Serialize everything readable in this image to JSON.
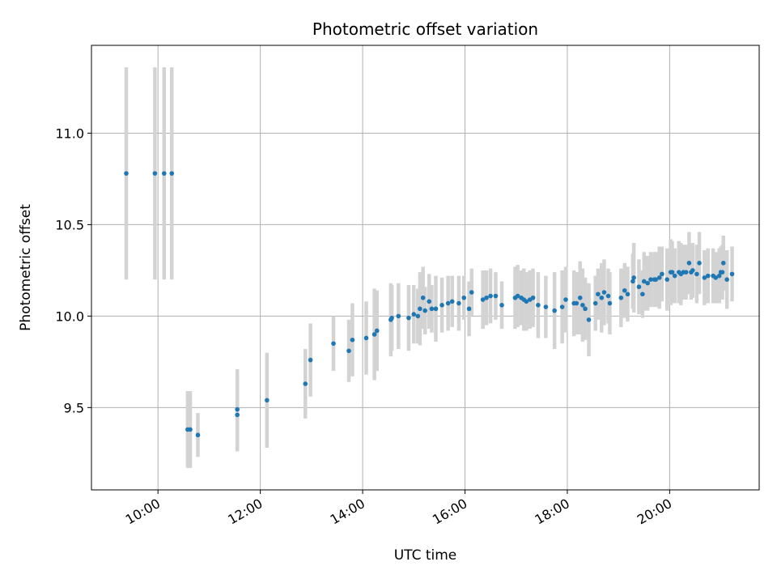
{
  "chart_data": {
    "type": "scatter",
    "title": "Photometric offset variation",
    "xlabel": "UTC time",
    "ylabel": "Photometric offset",
    "xlim": [
      8.7,
      21.75
    ],
    "ylim": [
      9.05,
      11.48
    ],
    "grid": true,
    "x_ticks": [
      {
        "value": 10,
        "label": "10:00"
      },
      {
        "value": 12,
        "label": "12:00"
      },
      {
        "value": 14,
        "label": "14:00"
      },
      {
        "value": 16,
        "label": "16:00"
      },
      {
        "value": 18,
        "label": "18:00"
      },
      {
        "value": 20,
        "label": "20:00"
      }
    ],
    "y_ticks": [
      {
        "value": 9.5,
        "label": "9.5"
      },
      {
        "value": 10.0,
        "label": "10.0"
      },
      {
        "value": 10.5,
        "label": "10.5"
      },
      {
        "value": 11.0,
        "label": "11.0"
      }
    ],
    "colors": {
      "marker": "#1f77b4",
      "errorbar": "#d3d3d3",
      "grid": "#b0b0b0"
    },
    "series": [
      {
        "name": "offset",
        "x": [
          9.38,
          9.94,
          10.12,
          10.27,
          10.58,
          10.63,
          10.78,
          11.55,
          11.55,
          12.13,
          12.88,
          12.98,
          13.43,
          13.73,
          13.8,
          14.07,
          14.23,
          14.28,
          14.55,
          14.57,
          14.7,
          14.9,
          15.0,
          15.08,
          15.12,
          15.18,
          15.22,
          15.3,
          15.35,
          15.43,
          15.55,
          15.67,
          15.75,
          15.88,
          15.98,
          16.08,
          16.13,
          16.35,
          16.42,
          16.5,
          16.6,
          16.72,
          16.98,
          17.03,
          17.1,
          17.15,
          17.2,
          17.27,
          17.33,
          17.43,
          17.58,
          17.75,
          17.9,
          17.97,
          18.13,
          18.18,
          18.25,
          18.3,
          18.35,
          18.42,
          18.55,
          18.6,
          18.67,
          18.72,
          18.8,
          18.83,
          19.05,
          19.12,
          19.18,
          19.28,
          19.3,
          19.4,
          19.47,
          19.5,
          19.57,
          19.63,
          19.7,
          19.73,
          19.8,
          19.85,
          19.95,
          20.02,
          20.05,
          20.1,
          20.18,
          20.22,
          20.27,
          20.32,
          20.38,
          20.42,
          20.45,
          20.53,
          20.58,
          20.68,
          20.75,
          20.85,
          20.9,
          20.97,
          21.0,
          21.03,
          21.05,
          21.12,
          21.22
        ],
        "y": [
          10.78,
          10.78,
          10.78,
          10.78,
          9.38,
          9.38,
          9.35,
          9.46,
          9.49,
          9.54,
          9.63,
          9.76,
          9.85,
          9.81,
          9.87,
          9.88,
          9.9,
          9.92,
          9.98,
          9.99,
          10.0,
          9.99,
          10.01,
          10.0,
          10.04,
          10.1,
          10.03,
          10.08,
          10.04,
          10.04,
          10.06,
          10.07,
          10.08,
          10.07,
          10.1,
          10.04,
          10.13,
          10.09,
          10.1,
          10.11,
          10.11,
          10.06,
          10.1,
          10.11,
          10.1,
          10.09,
          10.08,
          10.09,
          10.1,
          10.06,
          10.05,
          10.03,
          10.05,
          10.09,
          10.07,
          10.07,
          10.1,
          10.06,
          10.04,
          9.98,
          10.07,
          10.12,
          10.1,
          10.13,
          10.11,
          10.07,
          10.1,
          10.14,
          10.12,
          10.19,
          10.21,
          10.16,
          10.12,
          10.19,
          10.18,
          10.2,
          10.2,
          10.2,
          10.21,
          10.23,
          10.2,
          10.24,
          10.24,
          10.22,
          10.24,
          10.23,
          10.24,
          10.24,
          10.29,
          10.24,
          10.25,
          10.23,
          10.29,
          10.21,
          10.22,
          10.22,
          10.21,
          10.22,
          10.24,
          10.24,
          10.29,
          10.2,
          10.23
        ],
        "err": [
          0.58,
          0.58,
          0.58,
          0.58,
          0.21,
          0.21,
          0.12,
          0.2,
          0.22,
          0.26,
          0.19,
          0.2,
          0.15,
          0.17,
          0.2,
          0.2,
          0.25,
          0.22,
          0.2,
          0.18,
          0.18,
          0.18,
          0.16,
          0.15,
          0.2,
          0.17,
          0.13,
          0.15,
          0.13,
          0.18,
          0.15,
          0.15,
          0.14,
          0.15,
          0.12,
          0.15,
          0.13,
          0.16,
          0.15,
          0.15,
          0.13,
          0.13,
          0.17,
          0.17,
          0.15,
          0.17,
          0.16,
          0.16,
          0.16,
          0.18,
          0.17,
          0.21,
          0.2,
          0.18,
          0.18,
          0.17,
          0.2,
          0.2,
          0.17,
          0.2,
          0.15,
          0.14,
          0.19,
          0.18,
          0.15,
          0.17,
          0.16,
          0.15,
          0.15,
          0.15,
          0.19,
          0.15,
          0.13,
          0.16,
          0.15,
          0.15,
          0.15,
          0.15,
          0.17,
          0.15,
          0.17,
          0.18,
          0.17,
          0.15,
          0.17,
          0.17,
          0.15,
          0.15,
          0.17,
          0.15,
          0.15,
          0.16,
          0.17,
          0.15,
          0.15,
          0.15,
          0.14,
          0.15,
          0.14,
          0.15,
          0.15,
          0.16,
          0.15
        ]
      }
    ]
  }
}
